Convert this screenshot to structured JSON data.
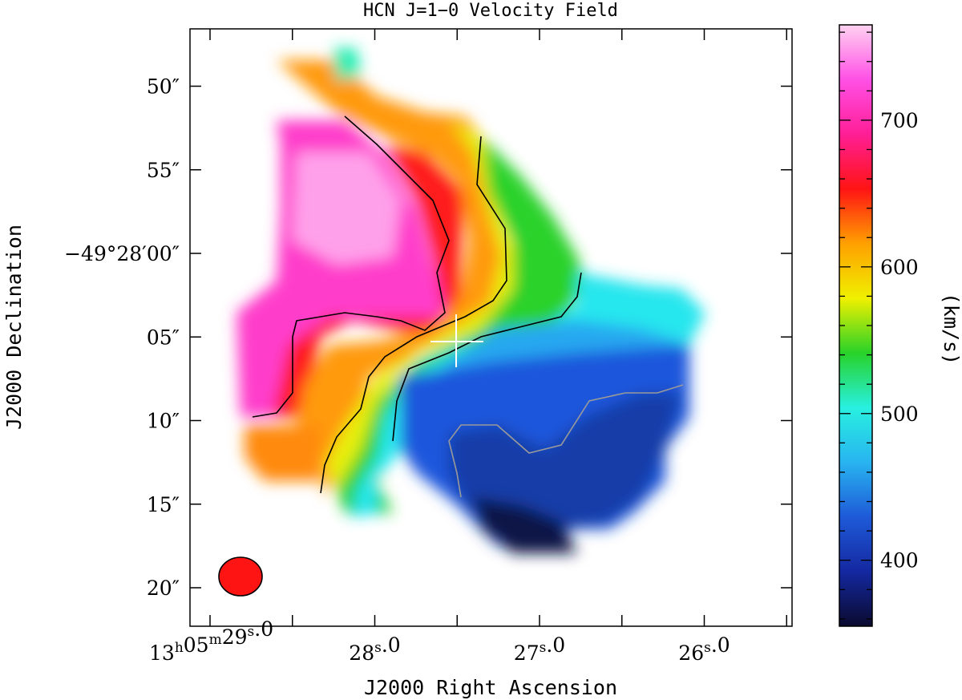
{
  "chart_data": {
    "type": "heatmap",
    "title": "HCN J=1−0 Velocity Field",
    "xlabel": "J2000 Right Ascension",
    "ylabel": "J2000 Declination",
    "x_ticks": [
      {
        "label_main": "13",
        "sup1": "h",
        "mid": "05",
        "sup2": "m",
        "label_end": "29",
        "sup3": "s",
        "tail": ".0",
        "ra_sec": 29.0
      },
      {
        "label_main": "28",
        "sup3": "s",
        "tail": ".0",
        "ra_sec": 28.0
      },
      {
        "label_main": "27",
        "sup3": "s",
        "tail": ".0",
        "ra_sec": 27.0
      },
      {
        "label_main": "26",
        "sup3": "s",
        "tail": ".0",
        "ra_sec": 26.0
      }
    ],
    "y_ticks": [
      {
        "label": "50″",
        "dec_offset": -10
      },
      {
        "label": "55″",
        "dec_offset": -5
      },
      {
        "label": "−49°28′00″",
        "dec_offset": 0
      },
      {
        "label": "05″",
        "dec_offset": 5
      },
      {
        "label": "10″",
        "dec_offset": 10
      },
      {
        "label": "15″",
        "dec_offset": 15
      },
      {
        "label": "20″",
        "dec_offset": 20
      }
    ],
    "colorbar": {
      "label": "(km/s)",
      "min": 355,
      "max": 765,
      "ticks": [
        400,
        500,
        600,
        700
      ],
      "tick_labels": [
        "400",
        "500",
        "600",
        "700"
      ],
      "colormap": [
        "#0a0a2e",
        "#1428a0",
        "#1e5ad8",
        "#28b4f0",
        "#28f0e0",
        "#28d228",
        "#f0f000",
        "#ffa000",
        "#ff1414",
        "#ff1e96",
        "#ff50e6",
        "#ffd2f0"
      ]
    },
    "regions": [
      {
        "name": "NE high-velocity lobe",
        "velocity_kms": 735
      },
      {
        "name": "E magenta region",
        "velocity_kms": 700
      },
      {
        "name": "red/orange ridge",
        "velocity_kms": 660
      },
      {
        "name": "yellow-green transition",
        "velocity_kms": 590
      },
      {
        "name": "cyan region",
        "velocity_kms": 510
      },
      {
        "name": "blue region",
        "velocity_kms": 455
      },
      {
        "name": "SW dark-blue region",
        "velocity_kms": 390
      }
    ],
    "marker": {
      "type": "cross",
      "ra_sec": 27.5,
      "dec_offset": 5.5
    },
    "beam": {
      "color": "#ff1414",
      "ra_sec": 28.85,
      "dec_offset": 19.3
    }
  }
}
